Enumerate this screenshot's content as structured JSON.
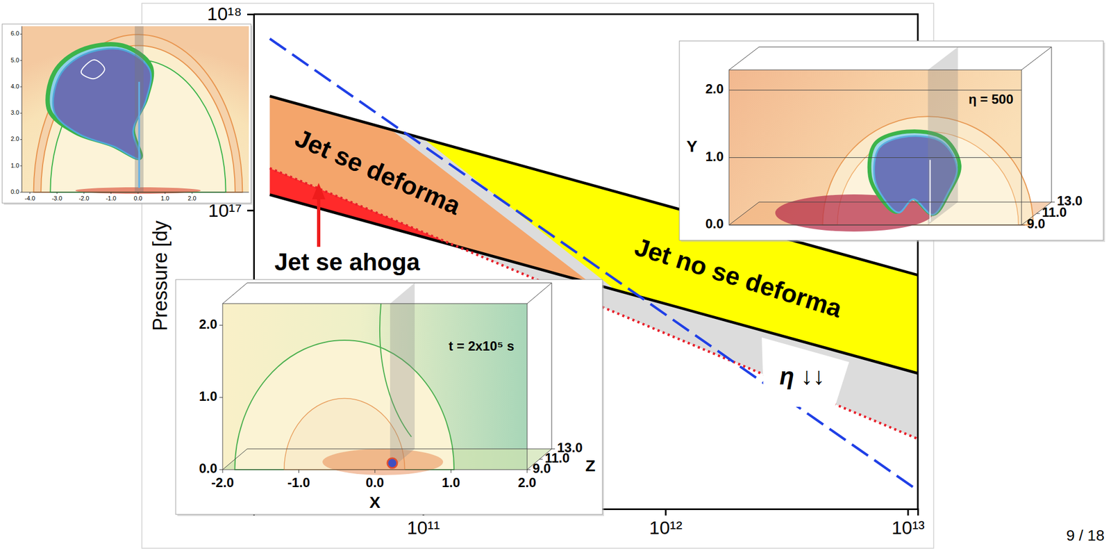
{
  "chart_data": {
    "type": "line",
    "y_label": "Pressure [dy",
    "log": true,
    "xlim": [
      20000000000.0,
      11000000000000.0
    ],
    "ylim": [
      3000000000000000.0,
      1e+18
    ],
    "xticks": [
      {
        "value": 100000000000.0,
        "label": "10¹¹"
      },
      {
        "value": 1000000000000.0,
        "label": "10¹²"
      },
      {
        "value": 10000000000000.0,
        "label": "10¹³"
      }
    ],
    "yticks": [
      {
        "value": 1e+17,
        "label": "10¹⁷"
      },
      {
        "value": 1e+18,
        "label": "10¹⁸"
      }
    ],
    "regions": [
      {
        "color": "#dcdcdc",
        "x": [
          23300000000.0,
          11100000000000.0,
          11100000000000.0,
          137000000000.0,
          23300000000.0
        ],
        "y": [
          3.82e+17,
          4.66e+16,
          6800000000000000.0,
          6.58e+16,
          1.2e+17
        ]
      },
      {
        "color": "#f4a56b",
        "x": [
          23300000000.0,
          73700000000.0,
          491000000000.0,
          137000000000.0,
          23300000000.0
        ],
        "y": [
          3.82e+17,
          2.58e+17,
          4.25e+16,
          6.58e+16,
          1.64e+17
        ]
      },
      {
        "color": "#ff2a2a",
        "x": [
          23300000000.0,
          137000000000.0,
          23300000000.0
        ],
        "y": [
          1.64e+17,
          6.58e+16,
          1.2e+17
        ]
      },
      {
        "color": "#ffff00",
        "x": [
          100000000000.0,
          11100000000000.0,
          11100000000000.0,
          622000000000.0
        ],
        "y": [
          2.33e+17,
          4.66e+16,
          1.47e+16,
          3.92e+16
        ]
      }
    ],
    "lines": [
      {
        "color": "#000000",
        "line_style": "solid",
        "x": [
          23300000000.0,
          11100000000000.0
        ],
        "y": [
          3.82e+17,
          4.66e+16
        ]
      },
      {
        "color": "#000000",
        "line_style": "solid",
        "x": [
          23300000000.0,
          11100000000000.0
        ],
        "y": [
          1.2e+17,
          1.47e+16
        ]
      },
      {
        "color": "#e8202a",
        "line_style": "dotted",
        "x": [
          23300000000.0,
          11100000000000.0
        ],
        "y": [
          1.64e+17,
          6800000000000000.0
        ]
      },
      {
        "color": "#1f3fe6",
        "line_style": "dashed",
        "x": [
          23300000000.0,
          10700000000000.0
        ],
        "y": [
          7.5e+17,
          3820000000000000.0
        ]
      }
    ],
    "annotations": [
      "Jet se deforma",
      "Jet no se deforma",
      "Jet se ahoga",
      "η ↓↓"
    ]
  },
  "insets": [
    {
      "xlim": [
        -4.3,
        4.1
      ],
      "ylim": [
        0,
        6.3
      ],
      "xticks": [
        {
          "value": -4,
          "label": "-4.0"
        },
        {
          "value": -3,
          "label": "-3.0"
        },
        {
          "value": -2,
          "label": "-2.0"
        },
        {
          "value": -1,
          "label": "-1.0"
        },
        {
          "value": 0,
          "label": "0.0"
        },
        {
          "value": 1,
          "label": "1.0"
        },
        {
          "value": 2,
          "label": "2.0"
        }
      ],
      "yticks": [
        {
          "value": 0,
          "label": "0.0"
        },
        {
          "value": 1,
          "label": "1.0"
        },
        {
          "value": 2,
          "label": "2.0"
        },
        {
          "value": 3,
          "label": "3.0"
        },
        {
          "value": 4,
          "label": "4.0"
        },
        {
          "value": 5,
          "label": "5.0"
        },
        {
          "value": 6,
          "label": "6.0"
        }
      ]
    },
    {
      "title": "t = 2x10⁵ s",
      "x_label": "X",
      "z_label": "Z",
      "xlim": [
        -2,
        2
      ],
      "ylim": [
        0,
        2.3
      ],
      "zlim": [
        9,
        13
      ],
      "xticks": [
        {
          "value": -2,
          "label": "-2.0"
        },
        {
          "value": -1,
          "label": "-1.0"
        },
        {
          "value": 0,
          "label": "0.0"
        },
        {
          "value": 1,
          "label": "1.0"
        },
        {
          "value": 2,
          "label": "2.0"
        }
      ],
      "yticks": [
        {
          "value": 0,
          "label": "0.0"
        },
        {
          "value": 1,
          "label": "1.0"
        },
        {
          "value": 2,
          "label": "2.0"
        }
      ],
      "zticks": [
        {
          "value": 9,
          "label": "9.0"
        },
        {
          "value": 11,
          "label": "11.0"
        },
        {
          "value": 13,
          "label": "13.0"
        }
      ]
    },
    {
      "title": "η = 500",
      "y_label": "Y",
      "ylim": [
        0,
        2.3
      ],
      "zlim": [
        9,
        13
      ],
      "yticks": [
        {
          "value": 0,
          "label": "0.0"
        },
        {
          "value": 1,
          "label": "1.0"
        },
        {
          "value": 2,
          "label": "2.0"
        }
      ],
      "zticks": [
        {
          "value": 9,
          "label": "9.0"
        },
        {
          "value": 11,
          "label": "11.0"
        },
        {
          "value": 13,
          "label": "13.0"
        }
      ]
    }
  ],
  "page_number": "9 / 18"
}
